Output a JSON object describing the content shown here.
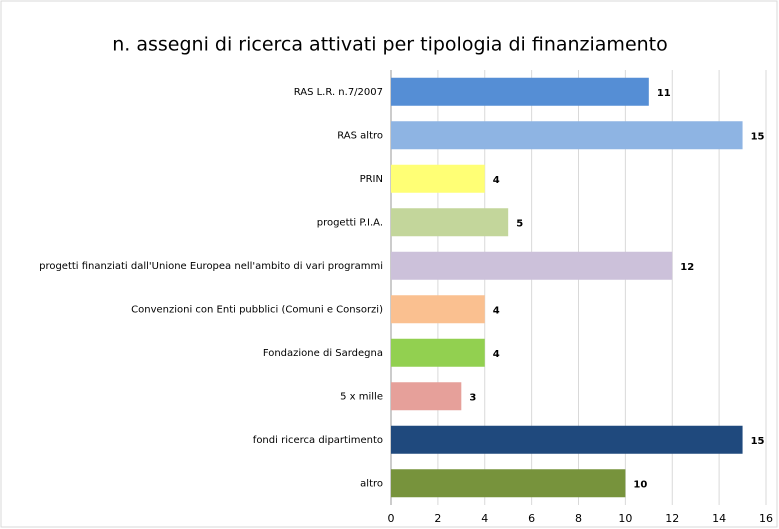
{
  "chart_data": {
    "type": "bar",
    "orientation": "horizontal",
    "title": "n. assegni di ricerca attivati per tipologia di finanziamento",
    "categories": [
      "RAS  L.R. n.7/2007",
      "RAS altro",
      "PRIN",
      "progetti P.I.A.",
      "progetti finanziati dall'Unione Europea nell'ambito di vari programmi",
      "Convenzioni con Enti pubblici (Comuni e Consorzi)",
      "Fondazione di Sardegna",
      "5 x mille",
      "fondi ricerca dipartimento",
      "altro"
    ],
    "values": [
      11,
      15,
      4,
      5,
      12,
      4,
      4,
      3,
      15,
      10
    ],
    "colors": [
      "#558ed5",
      "#8eb4e3",
      "#ffff75",
      "#c3d69b",
      "#ccc1da",
      "#fac090",
      "#92d050",
      "#e6a09a",
      "#1f497d",
      "#77933c"
    ],
    "xlim": [
      0,
      16
    ],
    "xticks": [
      0,
      2,
      4,
      6,
      8,
      10,
      12,
      14,
      16
    ],
    "grid": true
  }
}
